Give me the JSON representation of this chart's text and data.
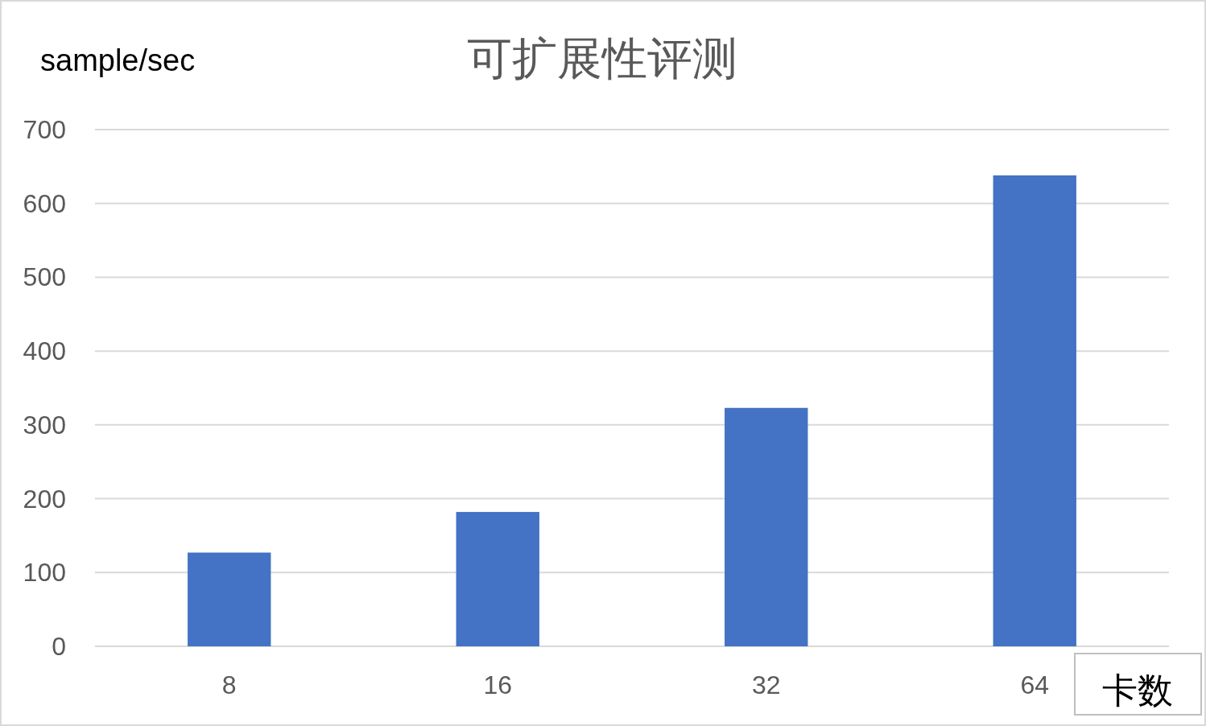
{
  "chart_data": {
    "type": "bar",
    "title": "可扩展性评测",
    "ylabel": "sample/sec",
    "xlabel": "卡数",
    "categories": [
      "8",
      "16",
      "32",
      "64"
    ],
    "values": [
      127,
      182,
      323,
      638
    ],
    "color": "#4472c4",
    "ylim": [
      0,
      700
    ],
    "yticks": [
      0,
      100,
      200,
      300,
      400,
      500,
      600,
      700
    ],
    "grid": "y"
  }
}
